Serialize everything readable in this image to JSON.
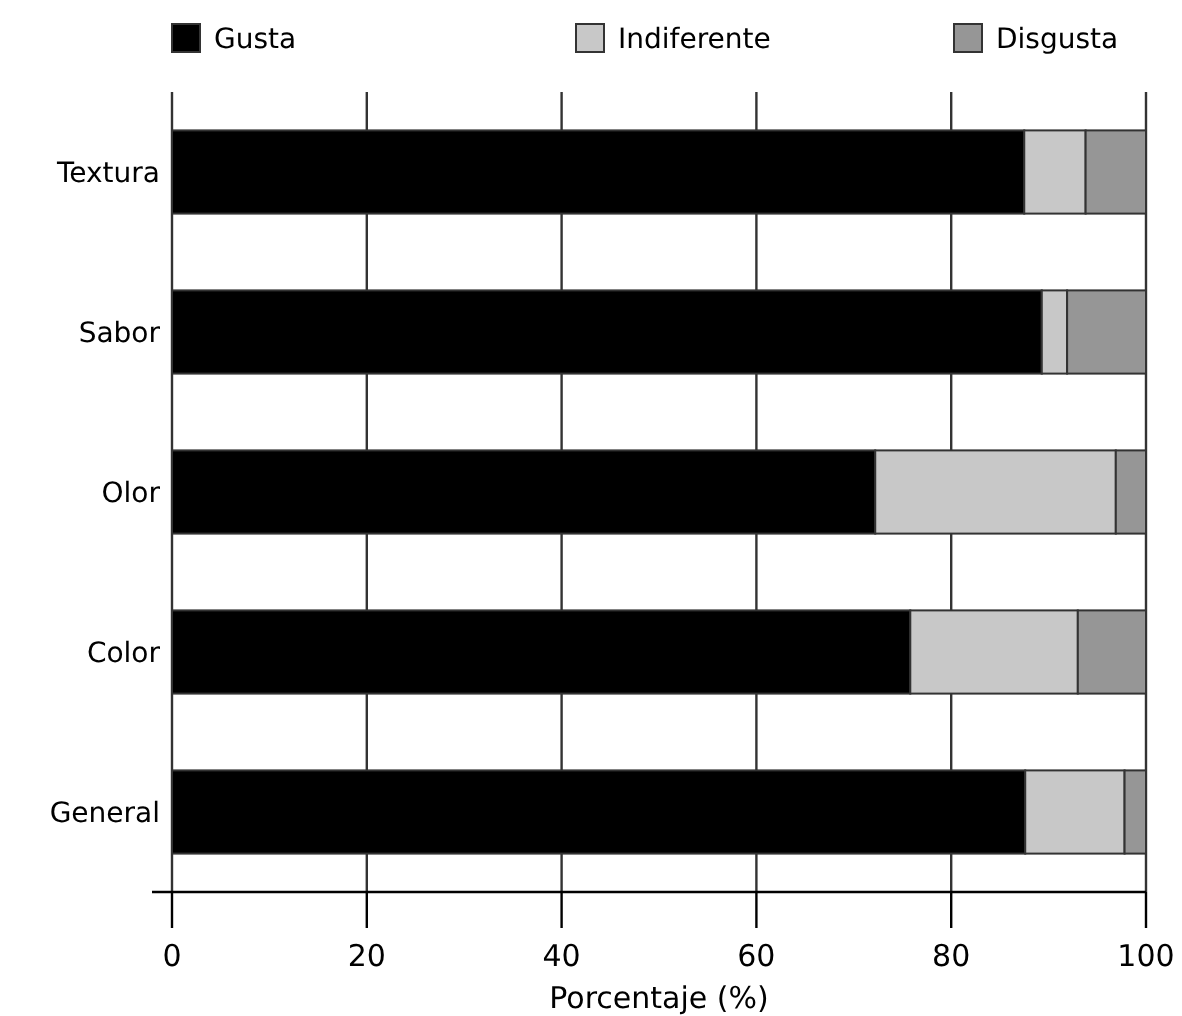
{
  "chart_data": {
    "type": "bar",
    "orientation": "horizontal",
    "stacked": true,
    "xlabel": "Porcentaje (%)",
    "categories": [
      "Textura",
      "Sabor",
      "Olor",
      "Color",
      "General"
    ],
    "series": [
      {
        "name": "Gusta",
        "color": "#000000",
        "values": [
          87.5,
          89.3,
          72.2,
          75.8,
          87.6
        ]
      },
      {
        "name": "Indiferente",
        "color": "#c8c8c8",
        "values": [
          6.3,
          2.6,
          24.7,
          17.2,
          10.2
        ]
      },
      {
        "name": "Disgusta",
        "color": "#969696",
        "values": [
          6.2,
          8.1,
          3.1,
          7.0,
          2.2
        ]
      }
    ],
    "xlim": [
      0,
      100
    ],
    "xticks": [
      0,
      20,
      40,
      60,
      80,
      100
    ],
    "grid": "x",
    "legend": "top"
  }
}
